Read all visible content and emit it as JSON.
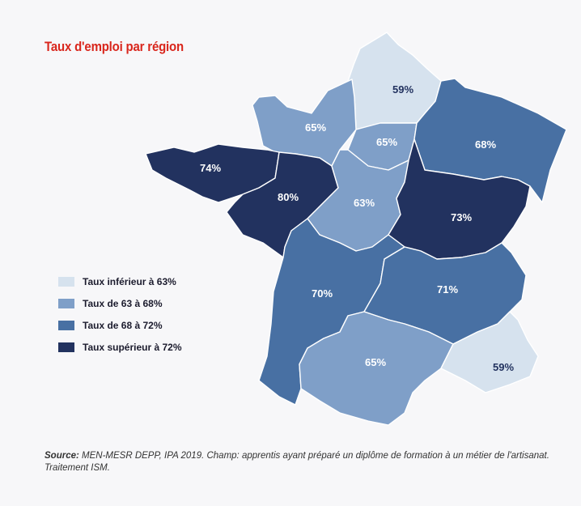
{
  "title": "Taux d'emploi par région",
  "colors": {
    "lt63": "#d6e2ee",
    "r63_68": "#7f9fc8",
    "r68_72": "#4870a3",
    "gt72": "#22325f",
    "label_dark": "#22325f",
    "label_light": "#ffffff"
  },
  "legend": [
    {
      "label": "Taux inférieur à 63%",
      "color": "#d6e2ee"
    },
    {
      "label": "Taux de 63 à 68%",
      "color": "#7f9fc8"
    },
    {
      "label": "Taux de 68 à 72%",
      "color": "#4870a3"
    },
    {
      "label": "Taux supérieur à 72%",
      "color": "#22325f"
    }
  ],
  "regions": [
    {
      "id": "hauts-de-france",
      "value": "59%"
    },
    {
      "id": "normandie",
      "value": "65%"
    },
    {
      "id": "ile-de-france",
      "value": "65%"
    },
    {
      "id": "grand-est",
      "value": "68%"
    },
    {
      "id": "bretagne",
      "value": "74%"
    },
    {
      "id": "pays-de-la-loire",
      "value": "80%"
    },
    {
      "id": "centre-val-de-loire",
      "value": "63%"
    },
    {
      "id": "bourgogne-franche-comte",
      "value": "73%"
    },
    {
      "id": "nouvelle-aquitaine",
      "value": "70%"
    },
    {
      "id": "auvergne-rhone-alpes",
      "value": "71%"
    },
    {
      "id": "occitanie",
      "value": "65%"
    },
    {
      "id": "provence-alpes-cote-azur",
      "value": "59%"
    }
  ],
  "source": {
    "label": "Source:",
    "text": " MEN-MESR DEPP, IPA 2019. Champ: apprentis ayant préparé un diplôme de formation à un métier de l'artisanat. Traitement ISM."
  }
}
